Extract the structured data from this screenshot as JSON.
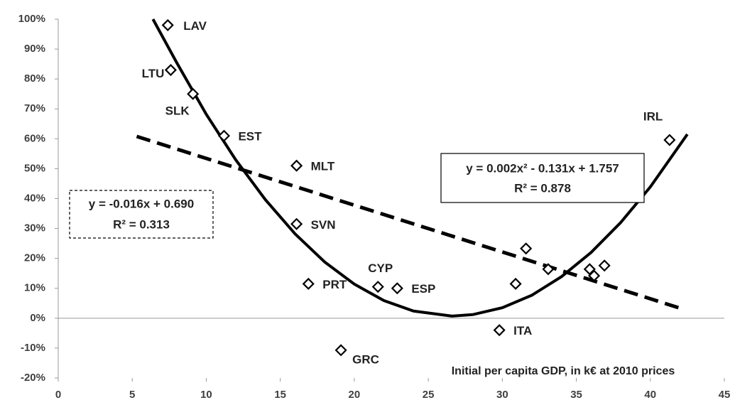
{
  "chart_data": {
    "type": "scatter",
    "x_label": "Initial per capita GDP, in k€ at 2010 prices",
    "xlim": [
      0,
      45
    ],
    "xticks": [
      0,
      5,
      10,
      15,
      20,
      25,
      30,
      35,
      40,
      45
    ],
    "ylim": [
      -20,
      100
    ],
    "yticks": [
      {
        "value": -20,
        "label": "-20%"
      },
      {
        "value": -10,
        "label": "-10%"
      },
      {
        "value": 0,
        "label": "0%"
      },
      {
        "value": 10,
        "label": "10%"
      },
      {
        "value": 20,
        "label": "20%"
      },
      {
        "value": 30,
        "label": "30%"
      },
      {
        "value": 40,
        "label": "40%"
      },
      {
        "value": 50,
        "label": "50%"
      },
      {
        "value": 60,
        "label": "60%"
      },
      {
        "value": 70,
        "label": "70%"
      },
      {
        "value": 80,
        "label": "80%"
      },
      {
        "value": 90,
        "label": "90%"
      },
      {
        "value": 100,
        "label": "100%"
      }
    ],
    "grid": false,
    "series": [
      {
        "color": "#000000",
        "marker": "diamond",
        "x": [
          7.4,
          7.6,
          9.1,
          11.2,
          16.1,
          16.1,
          16.9,
          21.6,
          22.9,
          19.1,
          29.8,
          30.9,
          31.6,
          33.1,
          35.9,
          36.2,
          36.9,
          41.3
        ],
        "values": [
          98,
          83,
          75,
          61,
          51,
          31.5,
          11.5,
          10.5,
          10,
          -10.7,
          -4,
          11.5,
          23.3,
          16.4,
          16.4,
          14.2,
          17.6,
          59.6
        ],
        "point_labels": [
          "LAV",
          "LTU",
          "SLK",
          "EST",
          "MLT",
          "SVN",
          "PRT",
          "CYP",
          "ESP",
          "GRC",
          "ITA",
          null,
          null,
          null,
          null,
          null,
          null,
          "IRL"
        ]
      }
    ],
    "trendlines": [
      {
        "style": "solid",
        "color": "#000000",
        "x": [
          6.4,
          8,
          10,
          12,
          14,
          16,
          18,
          20,
          22,
          24,
          26.6,
          28,
          30,
          32,
          34,
          36,
          38,
          40,
          42.5
        ],
        "values": [
          100,
          85.5,
          68.2,
          52.9,
          39.6,
          28.2,
          18.8,
          11.4,
          5.9,
          2.4,
          0.7,
          1.2,
          3.5,
          7.7,
          13.9,
          22,
          32,
          43.9,
          61.5
        ]
      },
      {
        "style": "dashed",
        "color": "#000000",
        "x": [
          5.3,
          42.3
        ],
        "values": [
          60.8,
          2.9
        ]
      }
    ],
    "annotations": [
      {
        "lines": [
          "y = -0.016x + 0.690",
          "R² = 0.313"
        ],
        "border": "dashed"
      },
      {
        "lines": [
          "y = 0.002x² - 0.131x + 1.757",
          "R² = 0.878"
        ],
        "border": "solid"
      }
    ]
  }
}
